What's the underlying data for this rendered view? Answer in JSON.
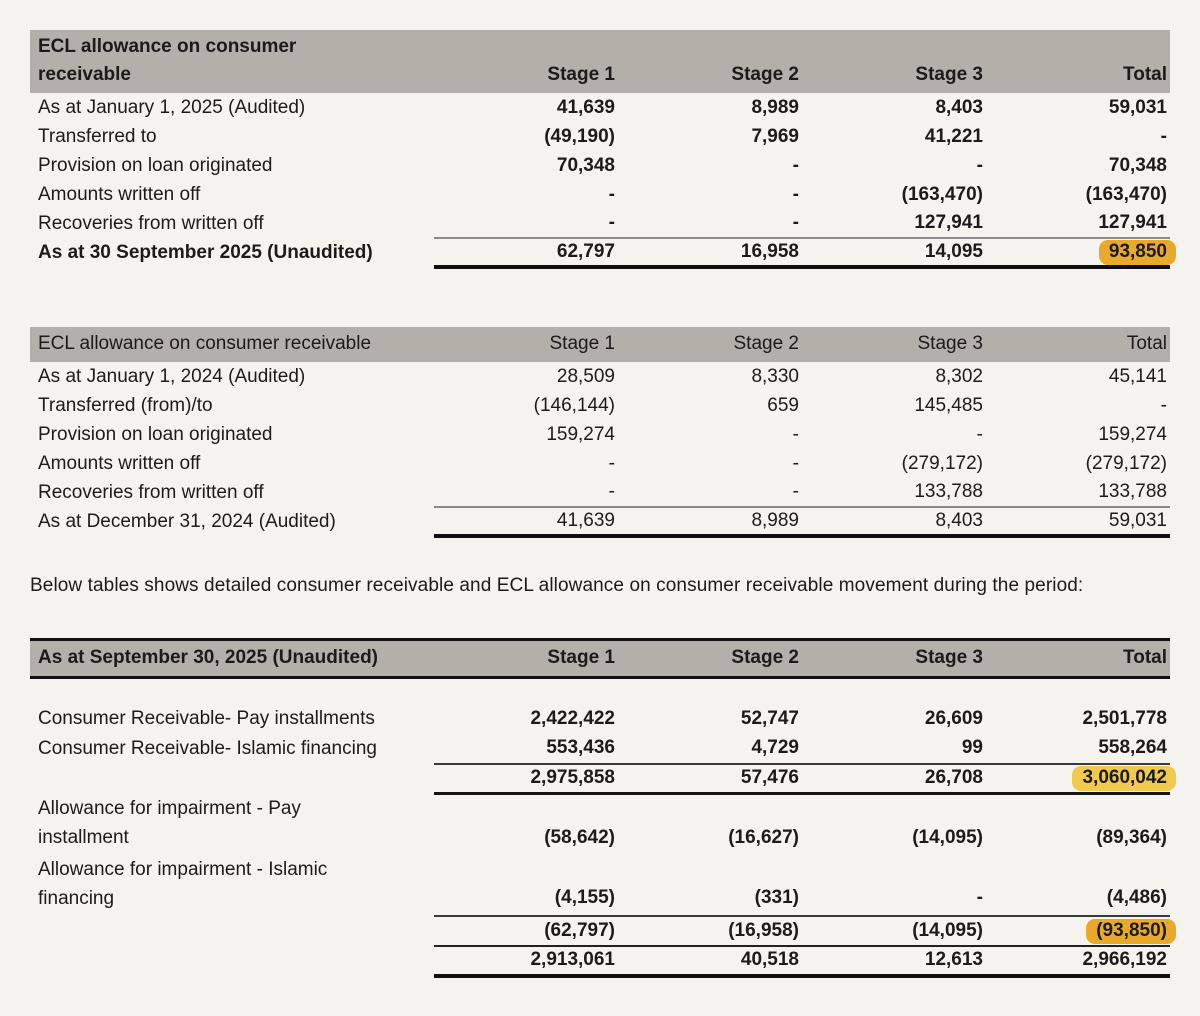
{
  "colors": {
    "page_bg": "#f5f3ee",
    "text": "#1b1b1b",
    "header_bg": "#b3b0aa",
    "highlight_orange": "#e9a92b",
    "highlight_yellow": "#f1c94e"
  },
  "paragraph": "Below tables shows detailed consumer receivable and ECL allowance on consumer receivable movement during the period:",
  "tables": [
    {
      "id": "ecl-movement-2025",
      "header": {
        "label_lines": [
          "ECL allowance on consumer",
          "receivable"
        ],
        "columns": [
          "Stage 1",
          "Stage 2",
          "Stage 3",
          "Total"
        ]
      },
      "rows": [
        {
          "label": "As at January 1, 2025 (Audited)",
          "values": [
            "41,639",
            "8,989",
            "8,403",
            "59,031"
          ],
          "bold_values": true
        },
        {
          "label": "Transferred to",
          "values": [
            "(49,190)",
            "7,969",
            "41,221",
            "-"
          ],
          "bold_values": true
        },
        {
          "label": "Provision on loan originated",
          "values": [
            "70,348",
            "-",
            "-",
            "70,348"
          ],
          "bold_values": true
        },
        {
          "label": "Amounts written off",
          "values": [
            "-",
            "-",
            "(163,470)",
            "(163,470)"
          ],
          "bold_values": true
        },
        {
          "label": "Recoveries from written off",
          "values": [
            "-",
            "-",
            "127,941",
            "127,941"
          ],
          "bold_values": true
        },
        {
          "label": "As at 30 September 2025 (Unaudited)",
          "bold_label": true,
          "values": [
            "62,797",
            "16,958",
            "14,095",
            "93,850"
          ],
          "bold_values": true,
          "line_above": "thin",
          "line_below": "thick",
          "highlights": {
            "3": "orange"
          }
        }
      ]
    },
    {
      "id": "ecl-movement-2024",
      "plain_header": true,
      "header": {
        "label_lines": [
          "ECL allowance on consumer receivable"
        ],
        "columns": [
          "Stage 1",
          "Stage 2",
          "Stage 3",
          "Total"
        ]
      },
      "rows": [
        {
          "label": "As at January 1, 2024 (Audited)",
          "values": [
            "28,509",
            "8,330",
            "8,302",
            "45,141"
          ]
        },
        {
          "label": "Transferred (from)/to",
          "values": [
            "(146,144)",
            "659",
            "145,485",
            "-"
          ]
        },
        {
          "label": "Provision on loan originated",
          "values": [
            "159,274",
            "-",
            "-",
            "159,274"
          ]
        },
        {
          "label": "Amounts written off",
          "values": [
            "-",
            "-",
            "(279,172)",
            "(279,172)"
          ]
        },
        {
          "label": "Recoveries from written off",
          "values": [
            "-",
            "-",
            "133,788",
            "133,788"
          ]
        },
        {
          "label": "As at December 31, 2024 (Audited)",
          "values": [
            "41,639",
            "8,989",
            "8,403",
            "59,031"
          ],
          "line_above": "thin",
          "line_below": "thick"
        }
      ]
    },
    {
      "id": "receivable-detail-2025",
      "boxed_header": true,
      "header": {
        "label_lines": [
          "As at September 30, 2025 (Unaudited)"
        ],
        "columns": [
          "Stage 1",
          "Stage 2",
          "Stage 3",
          "Total"
        ]
      },
      "rows": [
        {
          "spacer": true
        },
        {
          "label": "Consumer Receivable- Pay installments",
          "values": [
            "2,422,422",
            "52,747",
            "26,609",
            "2,501,778"
          ],
          "bold_values": true
        },
        {
          "label": "Consumer Receivable- Islamic financing",
          "values": [
            "553,436",
            "4,729",
            "99",
            "558,264"
          ],
          "bold_values": true
        },
        {
          "values": [
            "2,975,858",
            "57,476",
            "26,708",
            "3,060,042"
          ],
          "bold_values": true,
          "line_above": "thin",
          "line_below": "med",
          "highlights": {
            "3": "yellow"
          }
        },
        {
          "label_lines": [
            "Allowance for impairment - Pay",
            "installment"
          ],
          "tall": true,
          "values": [
            "(58,642)",
            "(16,627)",
            "(14,095)",
            "(89,364)"
          ],
          "bold_values": true
        },
        {
          "label_lines": [
            "Allowance for impairment - Islamic",
            "financing"
          ],
          "tall": true,
          "values": [
            "(4,155)",
            "(331)",
            "-",
            "(4,486)"
          ],
          "bold_values": true
        },
        {
          "values": [
            "(62,797)",
            "(16,958)",
            "(14,095)",
            "(93,850)"
          ],
          "bold_values": true,
          "line_above": "thin",
          "line_below": "thin",
          "highlights": {
            "3": "orange"
          }
        },
        {
          "values": [
            "2,913,061",
            "40,518",
            "12,613",
            "2,966,192"
          ],
          "bold_values": true,
          "line_below": "thick"
        }
      ]
    }
  ]
}
